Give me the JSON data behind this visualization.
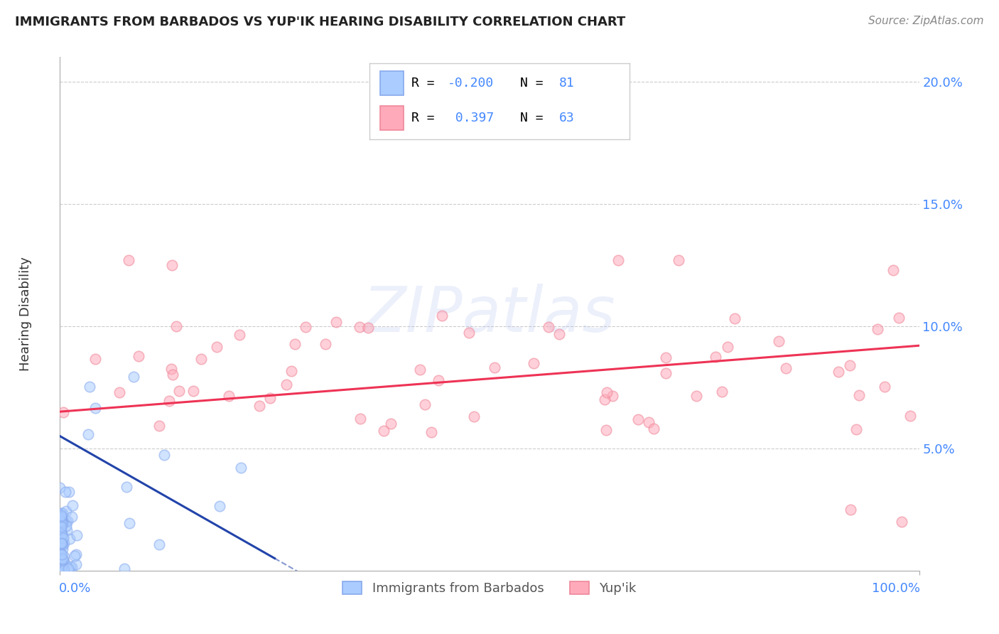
{
  "title": "IMMIGRANTS FROM BARBADOS VS YUP'IK HEARING DISABILITY CORRELATION CHART",
  "source": "Source: ZipAtlas.com",
  "ylabel": "Hearing Disability",
  "watermark": "ZIPatlas",
  "background_color": "#ffffff",
  "grid_color": "#cccccc",
  "title_color": "#222222",
  "source_color": "#888888",
  "blue_color": "#aaccff",
  "blue_edge_color": "#88aaee",
  "pink_color": "#ffaabb",
  "pink_edge_color": "#ee8899",
  "blue_line_color": "#2244aa",
  "pink_line_color": "#ee3355",
  "axis_label_color": "#4488ff",
  "ytick_color": "#4488ff",
  "legend_r_color": "#000000",
  "legend_n_color": "#4488ff",
  "legend_border_color": "#cccccc",
  "xlim": [
    0.0,
    1.0
  ],
  "ylim": [
    0.0,
    0.21
  ],
  "ytick_vals": [
    0.05,
    0.1,
    0.15,
    0.2
  ],
  "ytick_labels": [
    "5.0%",
    "10.0%",
    "15.0%",
    "20.0%"
  ],
  "blue_line_x0": 0.0,
  "blue_line_x1": 0.25,
  "blue_line_y0": 0.055,
  "blue_line_y1": 0.005,
  "pink_line_x0": 0.0,
  "pink_line_x1": 1.0,
  "pink_line_y0": 0.065,
  "pink_line_y1": 0.092
}
